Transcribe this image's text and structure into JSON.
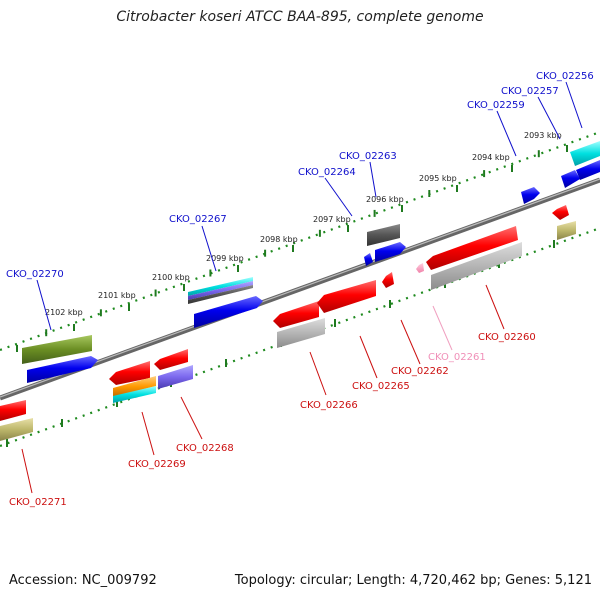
{
  "title": "Citrobacter koseri ATCC BAA-895, complete genome",
  "footer": {
    "accession": "Accession: NC_009792",
    "info": "Topology: circular; Length: 4,720,462 bp; Genes: 5,121"
  },
  "kbp_ticks": [
    "2093 kbp",
    "2094 kbp",
    "2095 kbp",
    "2096 kbp",
    "2097 kbp",
    "2098 kbp",
    "2099 kbp",
    "2100 kbp",
    "2101 kbp",
    "2102 kbp"
  ],
  "upper_labels": [
    "CKO_02256",
    "CKO_02257",
    "CKO_02259",
    "CKO_02263",
    "CKO_02264",
    "CKO_02267",
    "CKO_02270"
  ],
  "lower_labels": [
    "CKO_02260",
    "CKO_02261",
    "CKO_02262",
    "CKO_02265",
    "CKO_02266",
    "CKO_02268",
    "CKO_02269",
    "CKO_02271"
  ],
  "colors": {
    "forward_label": "#1010cc",
    "reverse_label": "#cc1010",
    "pseudo_label": "#f090b8",
    "backbone": "#777777",
    "ruler": "#2a8a2a"
  }
}
